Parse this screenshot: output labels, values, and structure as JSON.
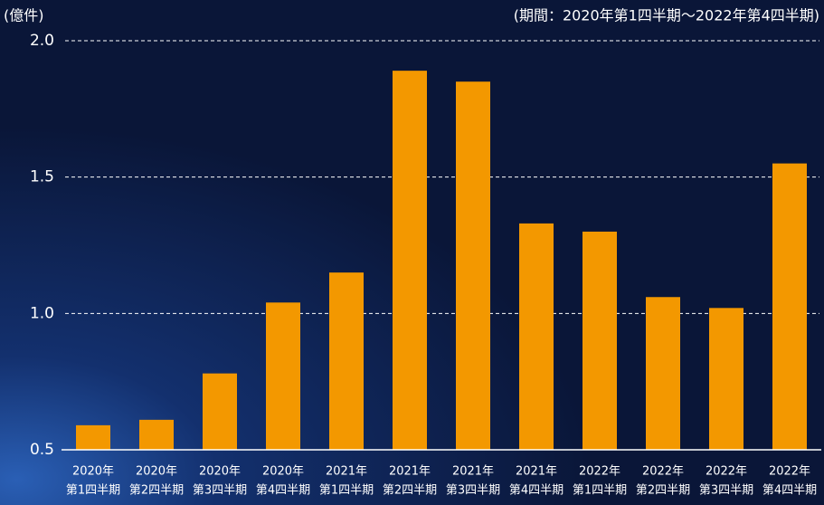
{
  "chart_data": {
    "type": "bar",
    "y_axis_label": "(億件)",
    "subtitle": "(期間：2020年第1四半期～2022年第4四半期)",
    "categories": [
      [
        "2020年",
        "第1四半期"
      ],
      [
        "2020年",
        "第2四半期"
      ],
      [
        "2020年",
        "第3四半期"
      ],
      [
        "2020年",
        "第4四半期"
      ],
      [
        "2021年",
        "第1四半期"
      ],
      [
        "2021年",
        "第2四半期"
      ],
      [
        "2021年",
        "第3四半期"
      ],
      [
        "2021年",
        "第4四半期"
      ],
      [
        "2022年",
        "第1四半期"
      ],
      [
        "2022年",
        "第2四半期"
      ],
      [
        "2022年",
        "第3四半期"
      ],
      [
        "2022年",
        "第4四半期"
      ]
    ],
    "values": [
      0.59,
      0.61,
      0.78,
      1.04,
      1.15,
      1.89,
      1.85,
      1.33,
      1.3,
      1.06,
      1.02,
      1.55
    ],
    "color": "#f39800",
    "ylim": [
      0.5,
      2.0
    ],
    "yticks": [
      0.5,
      {
        "value": 1.0,
        "label": "1.0"
      },
      1.5,
      {
        "value": 2.0,
        "label": "2.0"
      }
    ],
    "grid": true
  }
}
